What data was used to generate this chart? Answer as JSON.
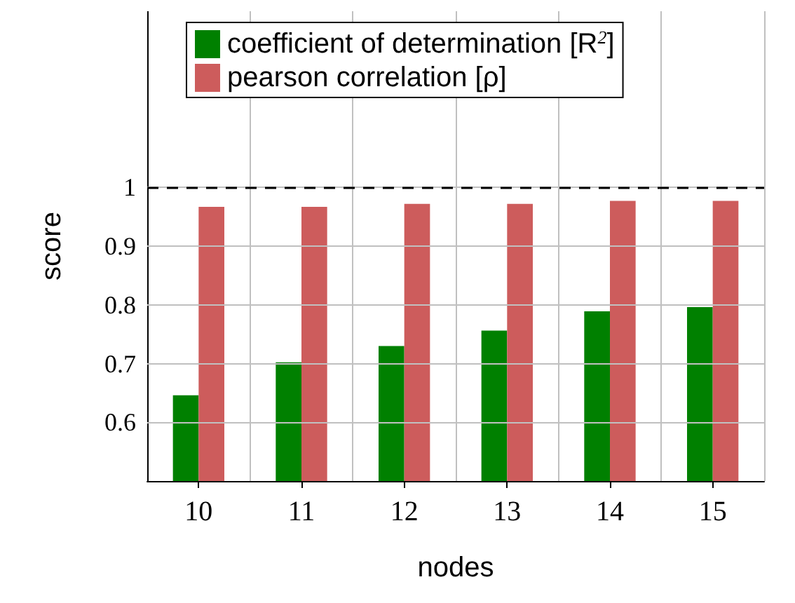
{
  "chart_data": {
    "type": "bar",
    "xlabel": "nodes",
    "ylabel": "score",
    "categories": [
      "10",
      "11",
      "12",
      "13",
      "14",
      "15"
    ],
    "series": [
      {
        "name": "coefficient of determination [R$^{2}$]",
        "color": "#008000",
        "values": [
          0.646,
          0.702,
          0.73,
          0.756,
          0.789,
          0.796
        ]
      },
      {
        "name": "pearson correlation [ρ]",
        "color": "#cd5c5c",
        "values": [
          0.967,
          0.967,
          0.972,
          0.972,
          0.977,
          0.977
        ]
      }
    ],
    "ylim": [
      0.5,
      1.3
    ],
    "yticks": [
      0.6,
      0.7,
      0.8,
      0.9,
      1
    ],
    "ref_lines": [
      {
        "axis": "y",
        "value": 1,
        "color": "#000000",
        "line_style": "dashed"
      }
    ],
    "grid": true,
    "legend": "top left"
  }
}
